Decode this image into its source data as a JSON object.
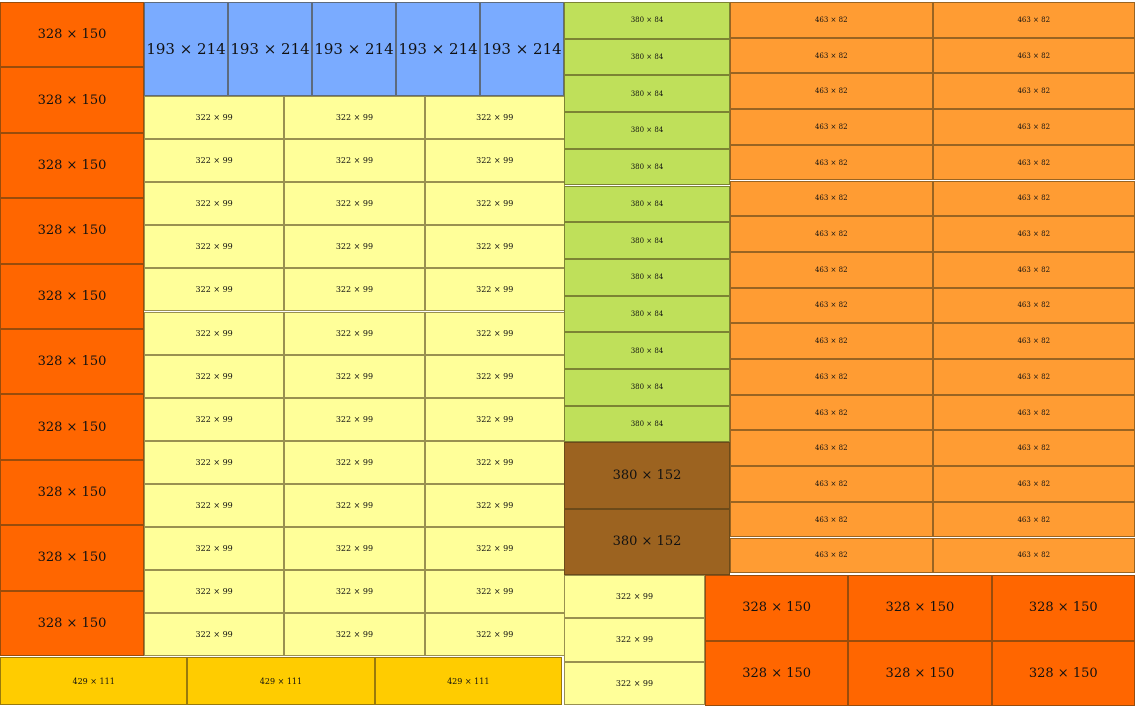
{
  "colors": {
    "red_orange": "#ff6600",
    "blue": "#7aabff",
    "light_yellow": "#ffff99",
    "lime": "#bfe05a",
    "light_orange": "#ff9c33",
    "brown": "#9c6320",
    "gold": "#ffcc00"
  },
  "labels": {
    "a": "328 × 150",
    "b": "193 × 214",
    "c": "322 × 99",
    "d": "380 × 84",
    "e": "463 × 82",
    "f": "380 × 152",
    "g": "429 × 111"
  }
}
